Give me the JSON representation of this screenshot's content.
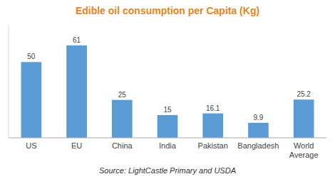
{
  "chart_data": {
    "type": "bar",
    "title": "Edible oil consumption per Capita (Kg)",
    "categories": [
      "US",
      "EU",
      "China",
      "India",
      "Pakistan",
      "Bangladesh",
      "World\nAverage"
    ],
    "values": [
      50,
      61,
      25,
      15,
      16.1,
      9.9,
      25.2
    ],
    "color": "#5B9BD5",
    "ylim": [
      0,
      75
    ],
    "data_labels": true,
    "tick_labels": "x",
    "grid": false,
    "annotations": [
      "Source: LightCastle Primary and USDA"
    ]
  }
}
